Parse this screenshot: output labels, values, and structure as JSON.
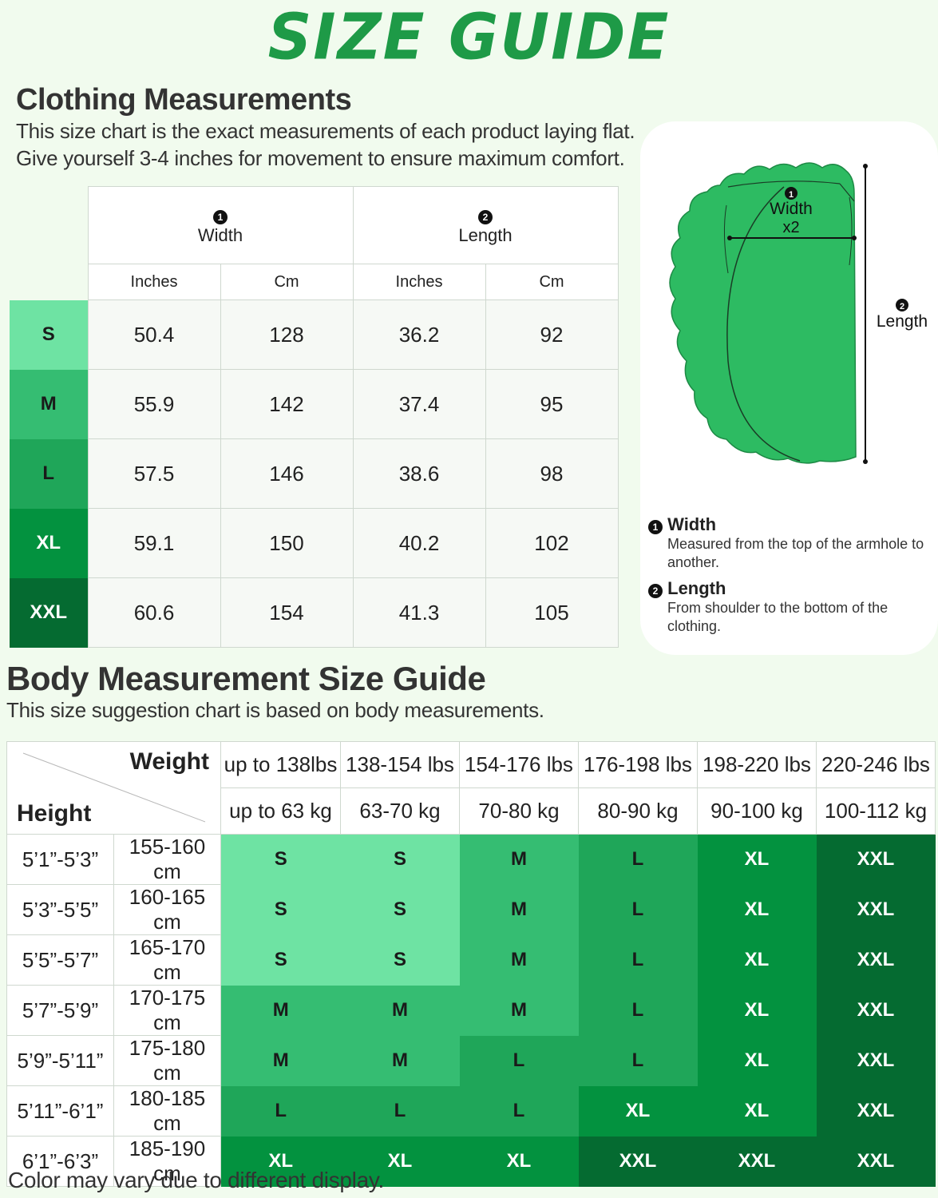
{
  "title": "SIZE GUIDE",
  "clothing": {
    "heading": "Clothing Measurements",
    "desc_line1": "This size chart is the exact measurements of each product laying flat.",
    "desc_line2": "Give yourself 3-4 inches for movement to ensure maximum comfort.",
    "width_num": "1",
    "width_label": "Width",
    "length_num": "2",
    "length_label": "Length",
    "units": [
      "Inches",
      "Cm",
      "Inches",
      "Cm"
    ],
    "rows": [
      {
        "size": "S",
        "values": [
          "50.4",
          "128",
          "36.2",
          "92"
        ]
      },
      {
        "size": "M",
        "values": [
          "55.9",
          "142",
          "37.4",
          "95"
        ]
      },
      {
        "size": "L",
        "values": [
          "57.5",
          "146",
          "38.6",
          "98"
        ]
      },
      {
        "size": "XL",
        "values": [
          "59.1",
          "150",
          "40.2",
          "102"
        ]
      },
      {
        "size": "XXL",
        "values": [
          "60.6",
          "154",
          "41.3",
          "105"
        ]
      }
    ]
  },
  "diagram": {
    "width_label": "Width",
    "width_multiplier": "x2",
    "length_label": "Length",
    "legend": [
      {
        "num": "1",
        "title": "Width",
        "desc": "Measured from the top of the armhole to another."
      },
      {
        "num": "2",
        "title": "Length",
        "desc": "From shoulder to the bottom of the clothing."
      }
    ]
  },
  "body": {
    "heading": "Body Measurement Size Guide",
    "desc": "This size suggestion chart is based on body measurements.",
    "weight_label": "Weight",
    "height_label": "Height",
    "weights_lbs": [
      "up to 138lbs",
      "138-154 lbs",
      "154-176 lbs",
      "176-198 lbs",
      "198-220 lbs",
      "220-246 lbs"
    ],
    "weights_kg": [
      "up to 63 kg",
      "63-70 kg",
      "70-80 kg",
      "80-90 kg",
      "90-100 kg",
      "100-112 kg"
    ],
    "rows": [
      {
        "ft": "5’1”-5’3”",
        "cm": "155-160 cm",
        "sizes": [
          "S",
          "S",
          "M",
          "L",
          "XL",
          "XXL"
        ]
      },
      {
        "ft": "5’3”-5’5”",
        "cm": "160-165 cm",
        "sizes": [
          "S",
          "S",
          "M",
          "L",
          "XL",
          "XXL"
        ]
      },
      {
        "ft": "5’5”-5’7”",
        "cm": "165-170 cm",
        "sizes": [
          "S",
          "S",
          "M",
          "L",
          "XL",
          "XXL"
        ]
      },
      {
        "ft": "5’7”-5’9”",
        "cm": "170-175 cm",
        "sizes": [
          "M",
          "M",
          "M",
          "L",
          "XL",
          "XXL"
        ]
      },
      {
        "ft": "5’9”-5’11”",
        "cm": "175-180 cm",
        "sizes": [
          "M",
          "M",
          "L",
          "L",
          "XL",
          "XXL"
        ]
      },
      {
        "ft": "5’11”-6’1”",
        "cm": "180-185 cm",
        "sizes": [
          "L",
          "L",
          "L",
          "XL",
          "XL",
          "XXL"
        ]
      },
      {
        "ft": "6’1”-6’3”",
        "cm": "185-190 cm",
        "sizes": [
          "XL",
          "XL",
          "XL",
          "XXL",
          "XXL",
          "XXL"
        ]
      }
    ]
  },
  "size_colors": {
    "S": "#6ee3a3",
    "M": "#35bd72",
    "L": "#1fa659",
    "XL": "#03923f",
    "XXL": "#056b31"
  },
  "size_text_colors": {
    "S": "#1a1a1a",
    "M": "#1a1a1a",
    "L": "#1a1a1a",
    "XL": "#ffffff",
    "XXL": "#ffffff"
  },
  "footer": "Color may vary due to different display."
}
